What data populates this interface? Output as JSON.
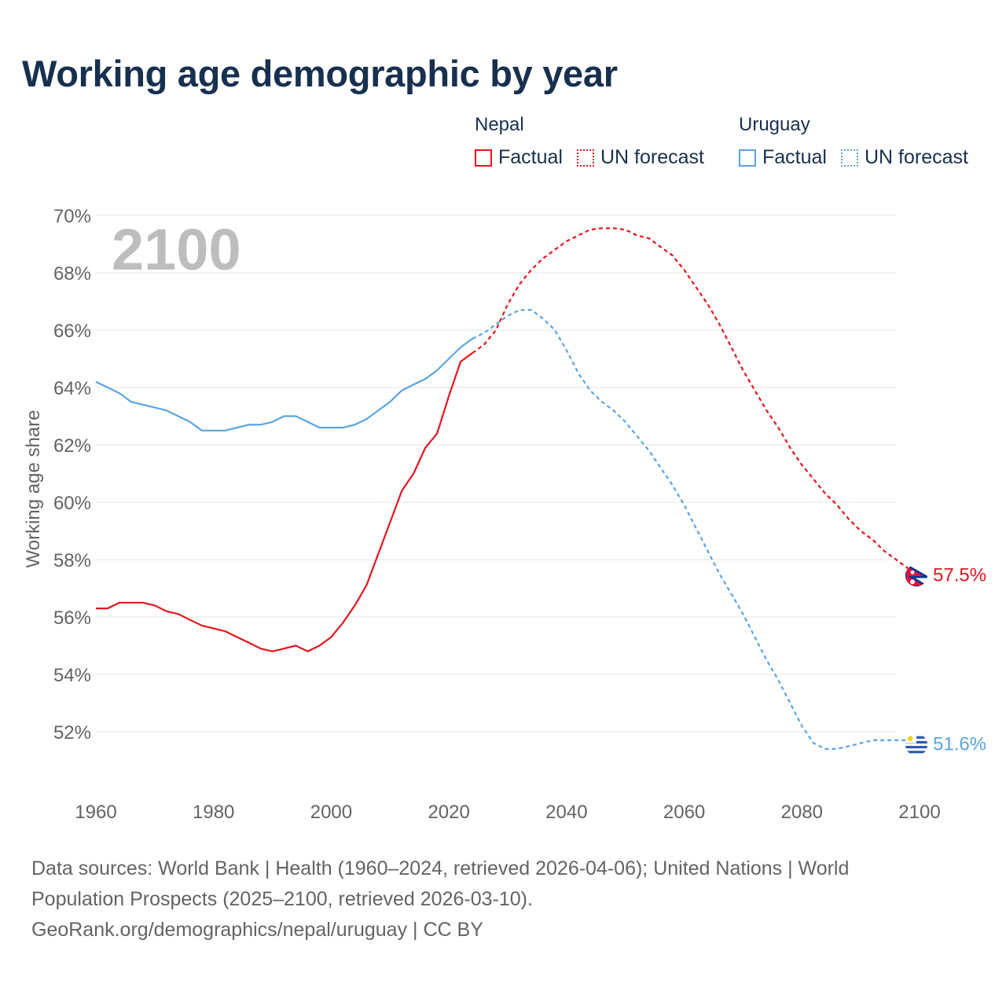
{
  "title": "Working age demographic by year",
  "legend": {
    "groups": [
      {
        "country": "Nepal",
        "factual_label": "Factual",
        "forecast_label": "UN forecast",
        "color": "#e8141e"
      },
      {
        "country": "Uruguay",
        "factual_label": "Factual",
        "forecast_label": "UN forecast",
        "color": "#5aa4e3"
      }
    ]
  },
  "footer": {
    "line1": "Data sources: World Bank | Health (1960–2024, retrieved 2026-04-06); United Nations | World",
    "line2": "Population Prospects (2025–2100, retrieved 2026-03-10).",
    "line3": "GeoRank.org/demographics/nepal/uruguay | CC BY"
  },
  "chart_data": {
    "type": "line",
    "title": "Working age demographic by year",
    "ylabel": "Working age share",
    "xlabel": "",
    "year_watermark": "2100",
    "xlim": [
      1960,
      2100
    ],
    "ylim": [
      50,
      70
    ],
    "x_ticks": [
      1960,
      1980,
      2000,
      2020,
      2040,
      2060,
      2080,
      2100
    ],
    "y_ticks": [
      52,
      54,
      56,
      58,
      60,
      62,
      64,
      66,
      68,
      70
    ],
    "y_tick_labels": [
      "52%",
      "54%",
      "56%",
      "58%",
      "60%",
      "62%",
      "64%",
      "66%",
      "68%",
      "70%"
    ],
    "grid": true,
    "legend_position": "top-right",
    "series": [
      {
        "name": "Nepal",
        "color": "#e8141e",
        "end_label": "57.5%",
        "flag": "nepal-flag",
        "factual": {
          "x": [
            1960,
            1962,
            1964,
            1966,
            1968,
            1970,
            1972,
            1974,
            1976,
            1978,
            1980,
            1982,
            1984,
            1986,
            1988,
            1990,
            1992,
            1994,
            1996,
            1998,
            2000,
            2002,
            2004,
            2006,
            2008,
            2010,
            2012,
            2014,
            2016,
            2018,
            2020,
            2022,
            2024
          ],
          "y": [
            56.3,
            56.3,
            56.5,
            56.5,
            56.5,
            56.4,
            56.2,
            56.1,
            55.9,
            55.7,
            55.6,
            55.5,
            55.3,
            55.1,
            54.9,
            54.8,
            54.9,
            55.0,
            54.8,
            55.0,
            55.3,
            55.8,
            56.4,
            57.1,
            58.2,
            59.3,
            60.4,
            61.0,
            61.9,
            62.4,
            63.7,
            64.9,
            65.2
          ]
        },
        "forecast": {
          "x": [
            2024,
            2026,
            2028,
            2030,
            2032,
            2034,
            2036,
            2038,
            2040,
            2042,
            2044,
            2046,
            2048,
            2050,
            2052,
            2054,
            2056,
            2058,
            2060,
            2062,
            2064,
            2066,
            2068,
            2070,
            2072,
            2074,
            2076,
            2078,
            2080,
            2082,
            2084,
            2086,
            2088,
            2090,
            2092,
            2094,
            2096,
            2098,
            2100
          ],
          "y": [
            65.2,
            65.5,
            66.0,
            66.9,
            67.6,
            68.1,
            68.5,
            68.8,
            69.1,
            69.3,
            69.5,
            69.55,
            69.55,
            69.5,
            69.3,
            69.2,
            68.9,
            68.6,
            68.1,
            67.5,
            66.9,
            66.2,
            65.4,
            64.6,
            63.9,
            63.2,
            62.6,
            61.9,
            61.3,
            60.8,
            60.3,
            59.9,
            59.4,
            59.0,
            58.7,
            58.3,
            58.0,
            57.7,
            57.5
          ]
        }
      },
      {
        "name": "Uruguay",
        "color": "#5aa4e3",
        "end_label": "51.6%",
        "flag": "uruguay-flag",
        "factual": {
          "x": [
            1960,
            1962,
            1964,
            1966,
            1968,
            1970,
            1972,
            1974,
            1976,
            1978,
            1980,
            1982,
            1984,
            1986,
            1988,
            1990,
            1992,
            1994,
            1996,
            1998,
            2000,
            2002,
            2004,
            2006,
            2008,
            2010,
            2012,
            2014,
            2016,
            2018,
            2020,
            2022,
            2024
          ],
          "y": [
            64.2,
            64.0,
            63.8,
            63.5,
            63.4,
            63.3,
            63.2,
            63.0,
            62.8,
            62.5,
            62.5,
            62.5,
            62.6,
            62.7,
            62.7,
            62.8,
            63.0,
            63.0,
            62.8,
            62.6,
            62.6,
            62.6,
            62.7,
            62.9,
            63.2,
            63.5,
            63.9,
            64.1,
            64.3,
            64.6,
            65.0,
            65.4,
            65.7
          ]
        },
        "forecast": {
          "x": [
            2024,
            2026,
            2028,
            2030,
            2032,
            2034,
            2036,
            2038,
            2040,
            2042,
            2044,
            2046,
            2048,
            2050,
            2052,
            2054,
            2056,
            2058,
            2060,
            2062,
            2064,
            2066,
            2068,
            2070,
            2072,
            2074,
            2076,
            2078,
            2080,
            2082,
            2084,
            2086,
            2088,
            2090,
            2092,
            2094,
            2096,
            2098,
            2100
          ],
          "y": [
            65.7,
            65.9,
            66.2,
            66.5,
            66.7,
            66.7,
            66.4,
            66.0,
            65.3,
            64.5,
            63.9,
            63.5,
            63.2,
            62.8,
            62.3,
            61.8,
            61.2,
            60.6,
            59.9,
            59.1,
            58.3,
            57.5,
            56.8,
            56.1,
            55.3,
            54.5,
            53.8,
            53.0,
            52.2,
            51.6,
            51.4,
            51.4,
            51.5,
            51.6,
            51.7,
            51.7,
            51.7,
            51.7,
            51.6
          ]
        }
      }
    ]
  }
}
